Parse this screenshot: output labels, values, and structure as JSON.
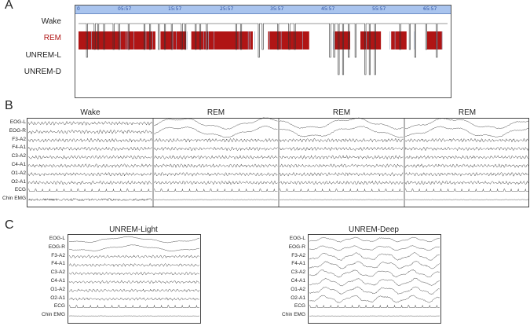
{
  "panels": {
    "a": "A",
    "b": "B",
    "c": "C"
  },
  "hypnogram": {
    "time_ticks": [
      "0",
      "05:57",
      "15:57",
      "25:57",
      "35:57",
      "45:57",
      "55:57",
      "65:57"
    ],
    "stages": [
      "Wake",
      "REM",
      "UNREM-L",
      "UNREM-D"
    ],
    "rem_color": "#b01515",
    "header_color": "#a9c4ee"
  },
  "panel_b": {
    "epoch_titles": [
      "Wake",
      "REM",
      "REM",
      "REM"
    ],
    "channels": [
      "EOG-L",
      "EOG-R",
      "F3-A2",
      "F4-A1",
      "C3-A2",
      "C4-A1",
      "O1-A2",
      "O2-A1",
      "ECG",
      "Chin EMG"
    ]
  },
  "panel_c": {
    "left_title": "UNREM-Light",
    "right_title": "UNREM-Deep",
    "channels": [
      "EOG-L",
      "EOG-R",
      "F3-A2",
      "F4-A1",
      "C3-A2",
      "C4-A1",
      "O1-A2",
      "O2-A1",
      "ECG",
      "Chin EMG"
    ]
  },
  "chart_data": [
    {
      "type": "line",
      "subtype": "hypnogram",
      "x_ticks": [
        "0",
        "05:57",
        "15:57",
        "25:57",
        "35:57",
        "45:57",
        "55:57",
        "65:57"
      ],
      "y_categories": [
        "Wake",
        "REM",
        "UNREM-L",
        "UNREM-D"
      ],
      "rem_periods_approx": [
        [
          0,
          15
        ],
        [
          16,
          21
        ],
        [
          22,
          34
        ],
        [
          37,
          45
        ],
        [
          50,
          53
        ],
        [
          55,
          59
        ],
        [
          61,
          64
        ],
        [
          68,
          71
        ]
      ]
    },
    {
      "type": "line",
      "subtype": "polysomnography-traces",
      "columns": [
        "Wake",
        "REM",
        "REM",
        "REM"
      ],
      "series": [
        "EOG-L",
        "EOG-R",
        "F3-A2",
        "F4-A1",
        "C3-A2",
        "C4-A1",
        "O1-A2",
        "O2-A1",
        "ECG",
        "Chin EMG"
      ]
    },
    {
      "type": "line",
      "subtype": "polysomnography-traces",
      "columns": [
        "UNREM-Light",
        "UNREM-Deep"
      ],
      "series": [
        "EOG-L",
        "EOG-R",
        "F3-A2",
        "F4-A1",
        "C3-A2",
        "C4-A1",
        "O1-A2",
        "O2-A1",
        "ECG",
        "Chin EMG"
      ]
    }
  ]
}
